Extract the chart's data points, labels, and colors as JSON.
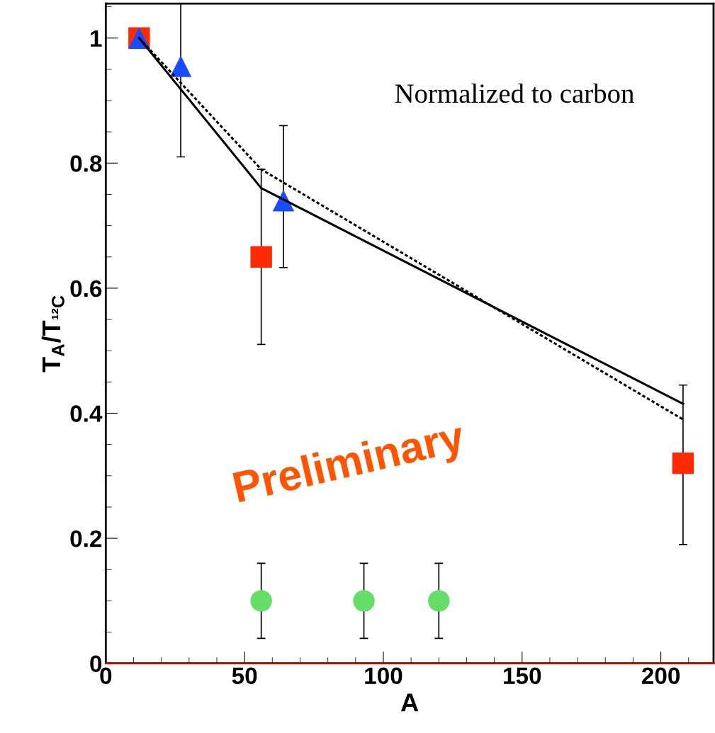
{
  "chart_data": {
    "type": "scatter",
    "xlabel": "A",
    "ylabel": "T$_{A}$/T$_{¹²C}$",
    "xlim": [
      0,
      219
    ],
    "ylim": [
      0,
      1.055
    ],
    "xticks": [
      0,
      50,
      100,
      150,
      200
    ],
    "yticks": [
      0,
      0.2,
      0.4,
      0.6,
      0.8,
      1
    ],
    "grid": false,
    "series": [
      {
        "type": "line",
        "color": "#000000",
        "line_style": "solid",
        "marker": "none",
        "x": [
          12,
          56,
          208
        ],
        "values": [
          1.0,
          0.76,
          0.415
        ]
      },
      {
        "type": "line",
        "color": "#000000",
        "line_style": "dotted",
        "marker": "none",
        "x": [
          12,
          56,
          208
        ],
        "values": [
          1.0,
          0.79,
          0.39
        ]
      },
      {
        "color": "#ff2a00",
        "marker": "square",
        "x": [
          12,
          56,
          208
        ],
        "values": [
          1.0,
          0.65,
          0.32
        ],
        "errors": [
          null,
          [
            0.51,
            0.79
          ],
          [
            0.19,
            0.445
          ]
        ]
      },
      {
        "color": "#1a4cff",
        "marker": "triangle",
        "x": [
          12,
          27,
          64
        ],
        "values": [
          1.0,
          0.955,
          0.74
        ],
        "errors": [
          null,
          [
            0.81,
            1.055
          ],
          [
            0.633,
            0.86
          ]
        ]
      },
      {
        "color": "#66dd66",
        "marker": "circle",
        "x": [
          56,
          93,
          120
        ],
        "values": [
          0.1,
          0.1,
          0.1
        ],
        "errors": [
          [
            0.04,
            0.16
          ],
          [
            0.04,
            0.16
          ],
          [
            0.04,
            0.16
          ]
        ]
      }
    ],
    "ref_lines": [
      {
        "axis": "y",
        "value": 0,
        "color": "#cc0000"
      }
    ],
    "annotations": [
      "Normalized to carbon",
      "Preliminary"
    ]
  }
}
